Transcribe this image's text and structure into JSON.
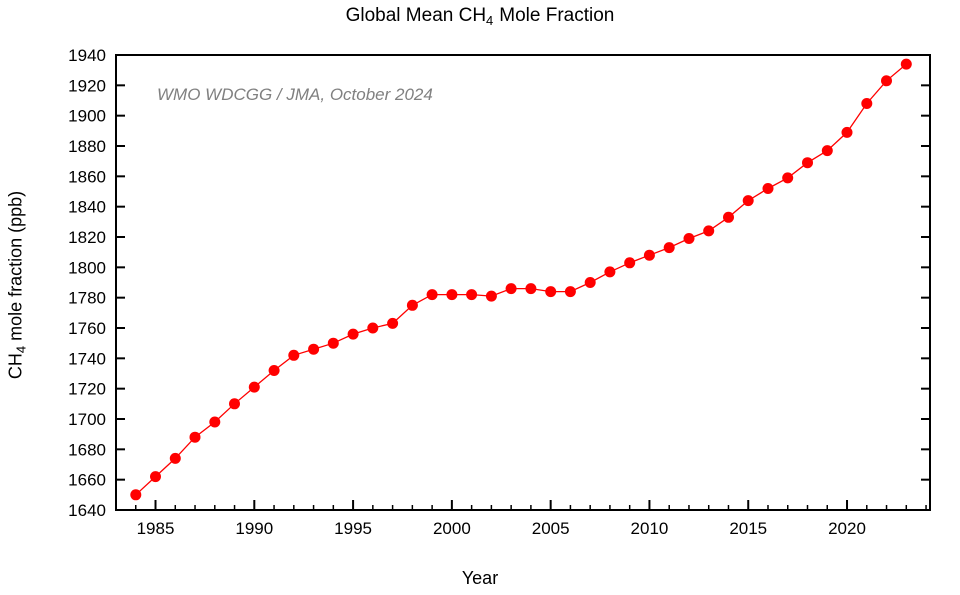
{
  "figure": {
    "title": {
      "prefix": "Global Mean CH",
      "subscript": "4",
      "suffix": "Mole Fraction"
    },
    "annotation": {
      "text": "WMO WDCGG / JMA, October 2024",
      "color": "#808080"
    },
    "xlabel": "Year",
    "ylabel": {
      "prefix": "CH",
      "subscript": "4",
      "suffix": " mole fraction (ppb)"
    }
  },
  "chart_data": {
    "type": "line",
    "series_name": "Global mean CH4 mole fraction",
    "unit": "ppb",
    "x": [
      1984,
      1985,
      1986,
      1987,
      1988,
      1989,
      1990,
      1991,
      1992,
      1993,
      1994,
      1995,
      1996,
      1997,
      1998,
      1999,
      2000,
      2001,
      2002,
      2003,
      2004,
      2005,
      2006,
      2007,
      2008,
      2009,
      2010,
      2011,
      2012,
      2013,
      2014,
      2015,
      2016,
      2017,
      2018,
      2019,
      2020,
      2021,
      2022,
      2023
    ],
    "values": [
      1650,
      1662,
      1674,
      1688,
      1698,
      1710,
      1721,
      1732,
      1742,
      1746,
      1750,
      1756,
      1760,
      1763,
      1775,
      1782,
      1782,
      1782,
      1781,
      1786,
      1786,
      1784,
      1784,
      1790,
      1797,
      1803,
      1808,
      1813,
      1819,
      1824,
      1833,
      1844,
      1852,
      1859,
      1869,
      1877,
      1889,
      1908,
      1923,
      1934
    ],
    "xlim": [
      1983,
      2024.2
    ],
    "ylim": [
      1640,
      1940
    ],
    "x_major_ticks": [
      1985,
      1990,
      1995,
      2000,
      2005,
      2010,
      2015,
      2020
    ],
    "x_minor_tick_step": 1,
    "y_ticks": [
      1640,
      1660,
      1680,
      1700,
      1720,
      1740,
      1760,
      1780,
      1800,
      1820,
      1840,
      1860,
      1880,
      1900,
      1920,
      1940
    ],
    "grid": false,
    "legend": "none",
    "marker": "filled-circle",
    "colors": {
      "line": "#ff0000",
      "marker": "#ff0000",
      "frame": "#000000",
      "tick_text": "#000000",
      "annotation_text": "#808080"
    }
  }
}
